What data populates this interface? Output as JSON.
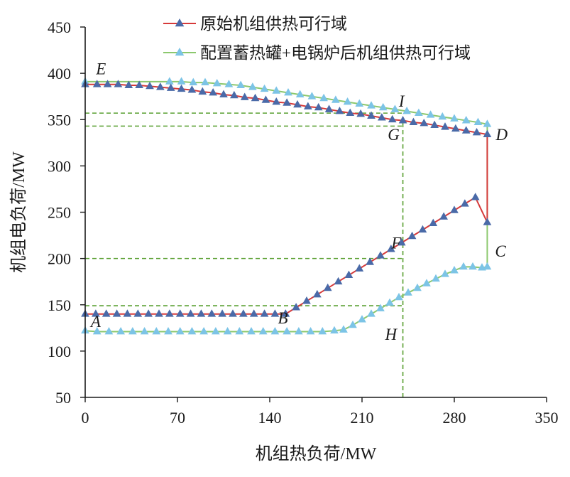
{
  "chart_data": {
    "type": "line",
    "xlabel": "机组热负荷/MW",
    "ylabel": "机组电负荷/MW",
    "xlim": [
      0,
      350
    ],
    "ylim": [
      50,
      450
    ],
    "xticks": [
      0,
      70,
      140,
      210,
      280,
      350
    ],
    "yticks": [
      50,
      100,
      150,
      200,
      250,
      300,
      350,
      400,
      450
    ],
    "grid": false,
    "legend_position": "top-right",
    "series": [
      {
        "name": "原始机组供热可行域",
        "color": "#d63a3a",
        "marker_color": "#4a6aa8",
        "marker": "triangle",
        "x": [
          0,
          8,
          16,
          24,
          32,
          40,
          48,
          56,
          64,
          72,
          80,
          88,
          96,
          104,
          112,
          120,
          128,
          136,
          144,
          152,
          152,
          160,
          168,
          176,
          184,
          192,
          200,
          208,
          216,
          224,
          232,
          240,
          248,
          256,
          264,
          272,
          280,
          288,
          296,
          305,
          305,
          297,
          289,
          281,
          273,
          265,
          257,
          249,
          241,
          233,
          225,
          217,
          209,
          201,
          193,
          185,
          177,
          169,
          161,
          153,
          145,
          137,
          129,
          121,
          113,
          105,
          97,
          89,
          81,
          73,
          65,
          57,
          49,
          41,
          33,
          25,
          17,
          9,
          0
        ],
        "y": [
          140,
          140,
          140,
          140,
          140,
          140,
          140,
          140,
          140,
          140,
          140,
          140,
          140,
          140,
          140,
          140,
          140,
          140,
          140,
          140,
          140,
          147,
          154,
          161,
          168,
          175,
          182,
          189,
          196,
          203,
          210,
          217,
          224,
          231,
          238,
          245,
          252,
          259,
          266,
          239,
          334,
          336,
          338,
          340,
          342,
          344,
          346,
          347,
          349,
          350,
          352,
          354,
          356,
          357,
          359,
          361,
          363,
          364,
          366,
          368,
          369,
          371,
          373,
          374,
          376,
          377,
          379,
          380,
          382,
          383,
          384,
          385,
          386,
          387,
          387,
          388,
          388,
          388,
          388
        ]
      },
      {
        "name": "配置蓄热罐+电锅炉后机组供热可行域",
        "color": "#8cc86e",
        "marker_color": "#7cc4e6",
        "marker": "triangle",
        "x": [
          0,
          9,
          18,
          27,
          36,
          45,
          54,
          63,
          72,
          81,
          90,
          99,
          108,
          117,
          126,
          135,
          144,
          153,
          162,
          171,
          180,
          189,
          196,
          203,
          210,
          217,
          224,
          231,
          238,
          245,
          252,
          259,
          266,
          273,
          280,
          287,
          294,
          301,
          305,
          305,
          298,
          289,
          280,
          271,
          262,
          253,
          244,
          235,
          226,
          217,
          208,
          199,
          190,
          181,
          172,
          163,
          154,
          145,
          136,
          127,
          118,
          109,
          100,
          91,
          82,
          73,
          64,
          0
        ],
        "y": [
          122,
          121,
          121,
          121,
          121,
          121,
          121,
          121,
          121,
          121,
          121,
          121,
          121,
          121,
          121,
          121,
          121,
          121,
          121,
          121,
          121,
          122,
          123,
          128,
          134,
          140,
          146,
          152,
          158,
          163,
          168,
          173,
          178,
          183,
          187,
          191,
          191,
          190,
          191,
          345,
          347,
          349,
          351,
          353,
          355,
          357,
          359,
          361,
          363,
          365,
          367,
          369,
          371,
          373,
          375,
          377,
          379,
          381,
          383,
          385,
          387,
          388,
          389,
          390,
          390,
          391,
          391,
          391
        ]
      }
    ],
    "reference_lines": {
      "color": "#5aa032",
      "horizontal": [
        {
          "y": 357,
          "x_from": 0,
          "x_to": 241
        },
        {
          "y": 343,
          "x_from": 0,
          "x_to": 241
        },
        {
          "y": 200,
          "x_from": 0,
          "x_to": 241
        },
        {
          "y": 149,
          "x_from": 0,
          "x_to": 241
        }
      ],
      "vertical": [
        {
          "x": 241,
          "y_from": 50,
          "y_to": 352
        }
      ]
    },
    "annotations": [
      {
        "text": "A",
        "x": 8,
        "y": 126
      },
      {
        "text": "B",
        "x": 150,
        "y": 130
      },
      {
        "text": "C",
        "x": 315,
        "y": 202
      },
      {
        "text": "D",
        "x": 316,
        "y": 328
      },
      {
        "text": "E",
        "x": 12,
        "y": 399
      },
      {
        "text": "F",
        "x": 236,
        "y": 211
      },
      {
        "text": "G",
        "x": 234,
        "y": 328
      },
      {
        "text": "H",
        "x": 232,
        "y": 112
      },
      {
        "text": "I",
        "x": 240,
        "y": 364
      }
    ]
  }
}
